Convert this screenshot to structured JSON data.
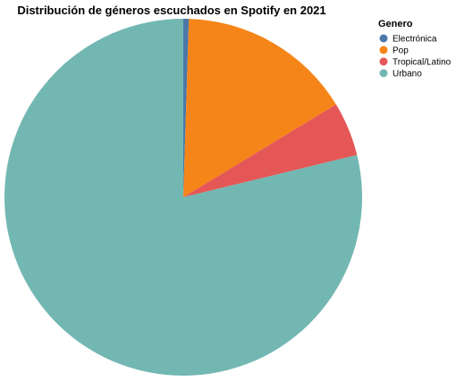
{
  "chart_data": {
    "type": "pie",
    "title": "Distribución de géneros escuchados en Spotify en 2021",
    "legend_title": "Genero",
    "legend_position": "top-right",
    "categories": [
      "Electrónica",
      "Pop",
      "Tropical/Latino",
      "Urbano"
    ],
    "values": [
      0.5,
      15.8,
      4.9,
      78.8
    ],
    "colors": [
      "#4c78a8",
      "#f58518",
      "#e45756",
      "#72b7b2"
    ]
  }
}
